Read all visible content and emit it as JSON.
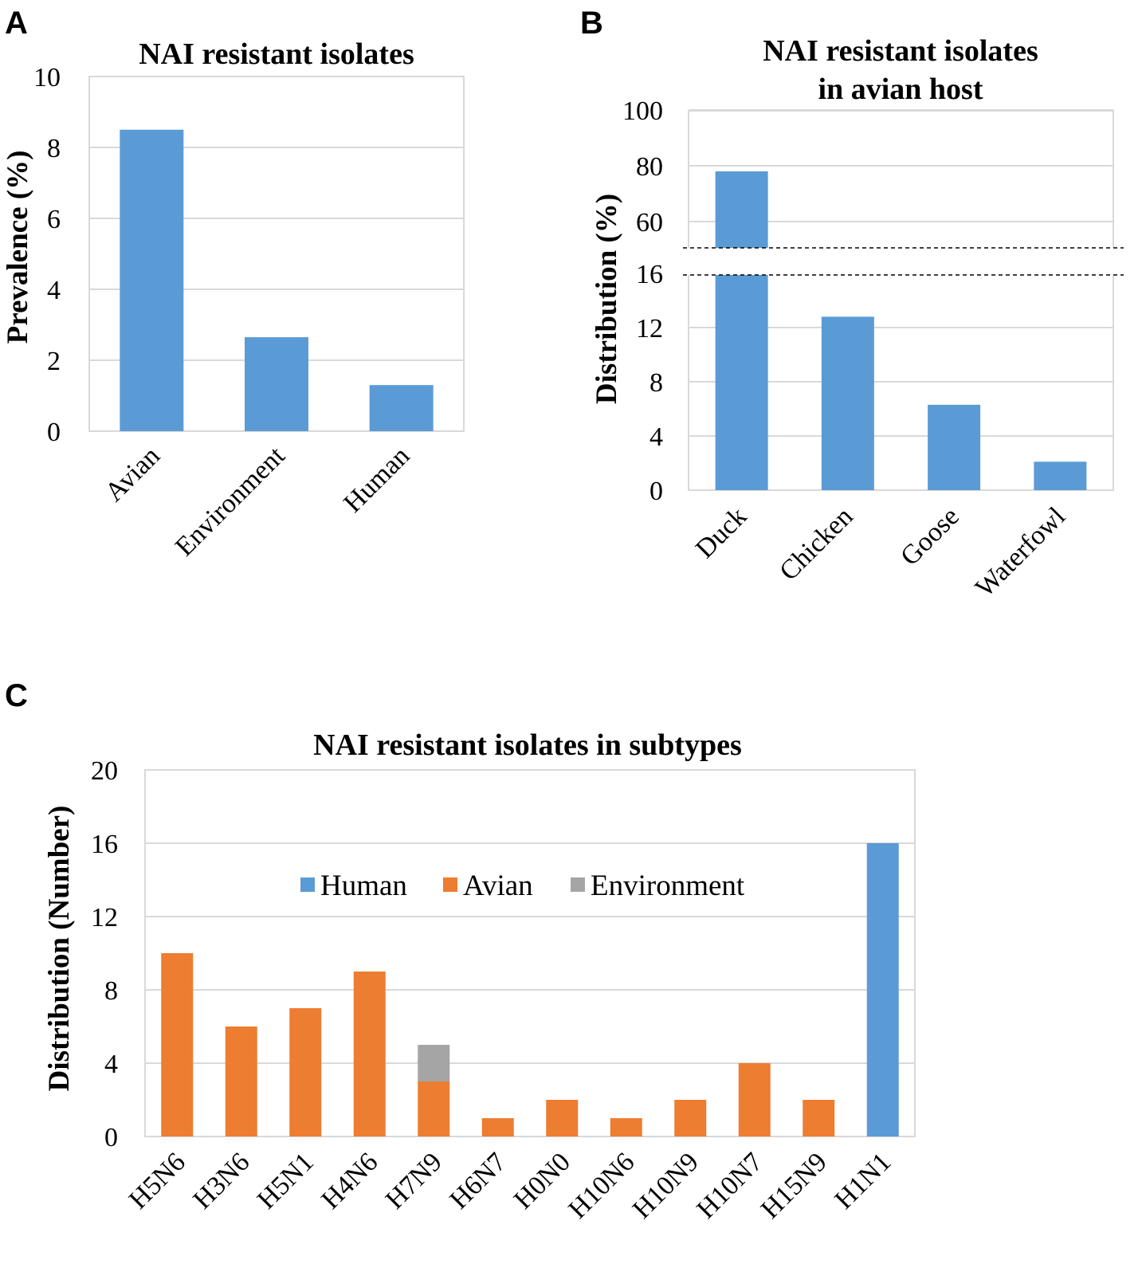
{
  "panels": {
    "a": "A",
    "b": "B",
    "c": "C"
  },
  "colors": {
    "human": "#5b9bd5",
    "avian": "#ed7d31",
    "environment": "#a5a5a5",
    "grid": "#d9d9d9"
  },
  "chart_data": [
    {
      "type": "bar",
      "title": "NAI resistant isolates",
      "xlabel": "",
      "ylabel": "Prevalence (%)",
      "ylim": [
        0,
        10
      ],
      "yticks": [
        "0",
        "2",
        "4",
        "6",
        "8",
        "10"
      ],
      "categories": [
        "Avian",
        "Environment",
        "Human"
      ],
      "values": [
        8.5,
        2.65,
        1.3
      ]
    },
    {
      "type": "bar",
      "title": "NAI resistant isolates",
      "title_line2": "in avian host",
      "xlabel": "",
      "ylabel": "Distribution (%)",
      "axis_break": "between 16 and 60",
      "ylim_lower": [
        0,
        16
      ],
      "ylim_upper": [
        60,
        100
      ],
      "yticks": [
        "0",
        "4",
        "8",
        "12",
        "16",
        "60",
        "80",
        "100"
      ],
      "categories": [
        "Duck",
        "Chicken",
        "Goose",
        "Waterfowl"
      ],
      "values": [
        78,
        12.8,
        6.3,
        2.1
      ]
    },
    {
      "type": "bar",
      "stacked": true,
      "title": "NAI resistant isolates in subtypes",
      "xlabel": "",
      "ylabel": "Distribution (Number)",
      "ylim": [
        0,
        20
      ],
      "yticks": [
        "0",
        "4",
        "8",
        "12",
        "16",
        "20"
      ],
      "categories": [
        "H5N6",
        "H3N6",
        "H5N1",
        "H4N6",
        "H7N9",
        "H6N7",
        "H0N0",
        "H10N6",
        "H10N9",
        "H10N7",
        "H15N9",
        "H1N1"
      ],
      "series": [
        {
          "name": "Human",
          "values": [
            0,
            0,
            0,
            0,
            0,
            0,
            0,
            0,
            0,
            0,
            0,
            16
          ]
        },
        {
          "name": "Avian",
          "values": [
            10,
            6,
            7,
            9,
            3,
            1,
            2,
            1,
            2,
            4,
            2,
            0
          ]
        },
        {
          "name": "Environment",
          "values": [
            0,
            0,
            0,
            0,
            2,
            0,
            0,
            0,
            0,
            0,
            0,
            0
          ]
        }
      ],
      "legend_position": "top-center"
    }
  ]
}
